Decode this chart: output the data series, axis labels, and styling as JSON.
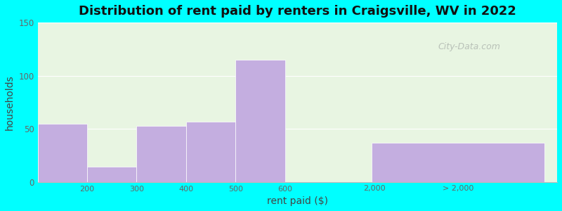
{
  "title": "Distribution of rent paid by renters in Craigsville, WV in 2022",
  "xlabel": "rent paid ($)",
  "ylabel": "households",
  "background_color": "#00ffff",
  "plot_bg_color_top": "#e8f5e2",
  "plot_bg_color_bottom": "#f0f8e8",
  "bar_color_main": "#c4aee0",
  "bar_values": [
    55,
    14,
    53,
    57,
    115,
    37
  ],
  "bar_x": [
    0.5,
    1.5,
    2.5,
    3.5,
    4.5,
    8.5
  ],
  "bar_widths": [
    1.0,
    1.0,
    1.0,
    1.0,
    1.0,
    3.5
  ],
  "xtick_positions": [
    1.0,
    2.0,
    3.0,
    4.0,
    5.0,
    6.8,
    8.5
  ],
  "xtick_labels": [
    "200",
    "300",
    "400",
    "500",
    "600",
    "2,000",
    "> 2,000"
  ],
  "ylim": [
    0,
    150
  ],
  "yticks": [
    0,
    50,
    100,
    150
  ],
  "xlim": [
    0.0,
    10.5
  ],
  "title_fontsize": 13,
  "axis_label_fontsize": 10,
  "watermark": "City-Data.com"
}
